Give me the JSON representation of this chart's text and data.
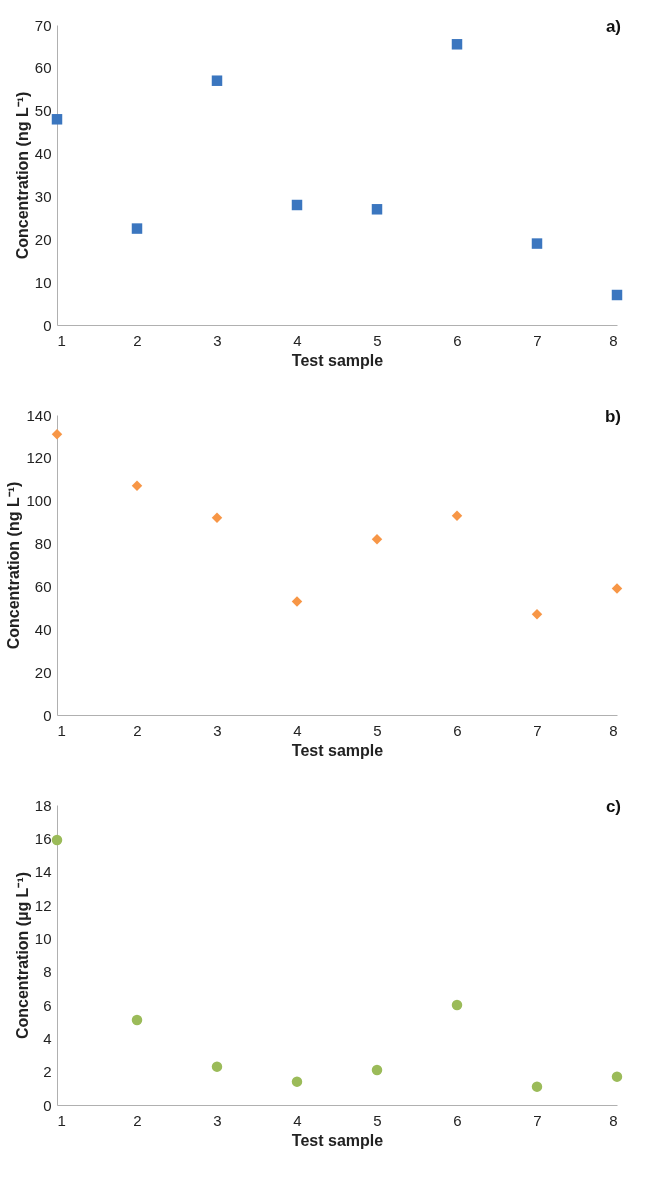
{
  "chart_data": [
    {
      "type": "scatter",
      "xlabel": "Test sample",
      "ylabel": "Concentration (ng L⁻¹)",
      "annotations": [
        "a)"
      ],
      "x": [
        1,
        2,
        3,
        4,
        5,
        6,
        7,
        8
      ],
      "series": [
        {
          "color": "#3b76bf",
          "values": [
            48,
            22.5,
            57,
            28,
            27,
            65.5,
            19,
            7
          ]
        }
      ],
      "xlim": [
        1,
        8
      ],
      "xticks": [
        1,
        2,
        3,
        4,
        5,
        6,
        7,
        8
      ],
      "ylim": [
        0,
        70
      ],
      "yticks": [
        0,
        10,
        20,
        30,
        40,
        50,
        60,
        70
      ],
      "marker": "square",
      "grid": false
    },
    {
      "type": "scatter",
      "xlabel": "Test sample",
      "ylabel": "Concentration (ng L⁻¹)",
      "annotations": [
        "b)"
      ],
      "x": [
        1,
        2,
        3,
        4,
        5,
        6,
        7,
        8
      ],
      "series": [
        {
          "color": "#f79646",
          "values": [
            131,
            107,
            92,
            53,
            82,
            93,
            47,
            59
          ]
        }
      ],
      "xlim": [
        1,
        8
      ],
      "xticks": [
        1,
        2,
        3,
        4,
        5,
        6,
        7,
        8
      ],
      "ylim": [
        0,
        140
      ],
      "yticks": [
        0,
        20,
        40,
        60,
        80,
        100,
        120,
        140
      ],
      "marker": "diamond",
      "grid": false
    },
    {
      "type": "scatter",
      "xlabel": "Test sample",
      "ylabel": "Concentration (µg L⁻¹)",
      "annotations": [
        "c)"
      ],
      "x": [
        1,
        2,
        3,
        4,
        5,
        6,
        7,
        8
      ],
      "series": [
        {
          "color": "#9bbb59",
          "values": [
            15.9,
            5.1,
            2.3,
            1.4,
            2.1,
            6.0,
            1.1,
            1.7
          ]
        }
      ],
      "xlim": [
        1,
        8
      ],
      "xticks": [
        1,
        2,
        3,
        4,
        5,
        6,
        7,
        8
      ],
      "ylim": [
        0,
        18
      ],
      "yticks": [
        0,
        2,
        4,
        6,
        8,
        10,
        12,
        14,
        16,
        18
      ],
      "marker": "circle",
      "grid": false
    }
  ]
}
